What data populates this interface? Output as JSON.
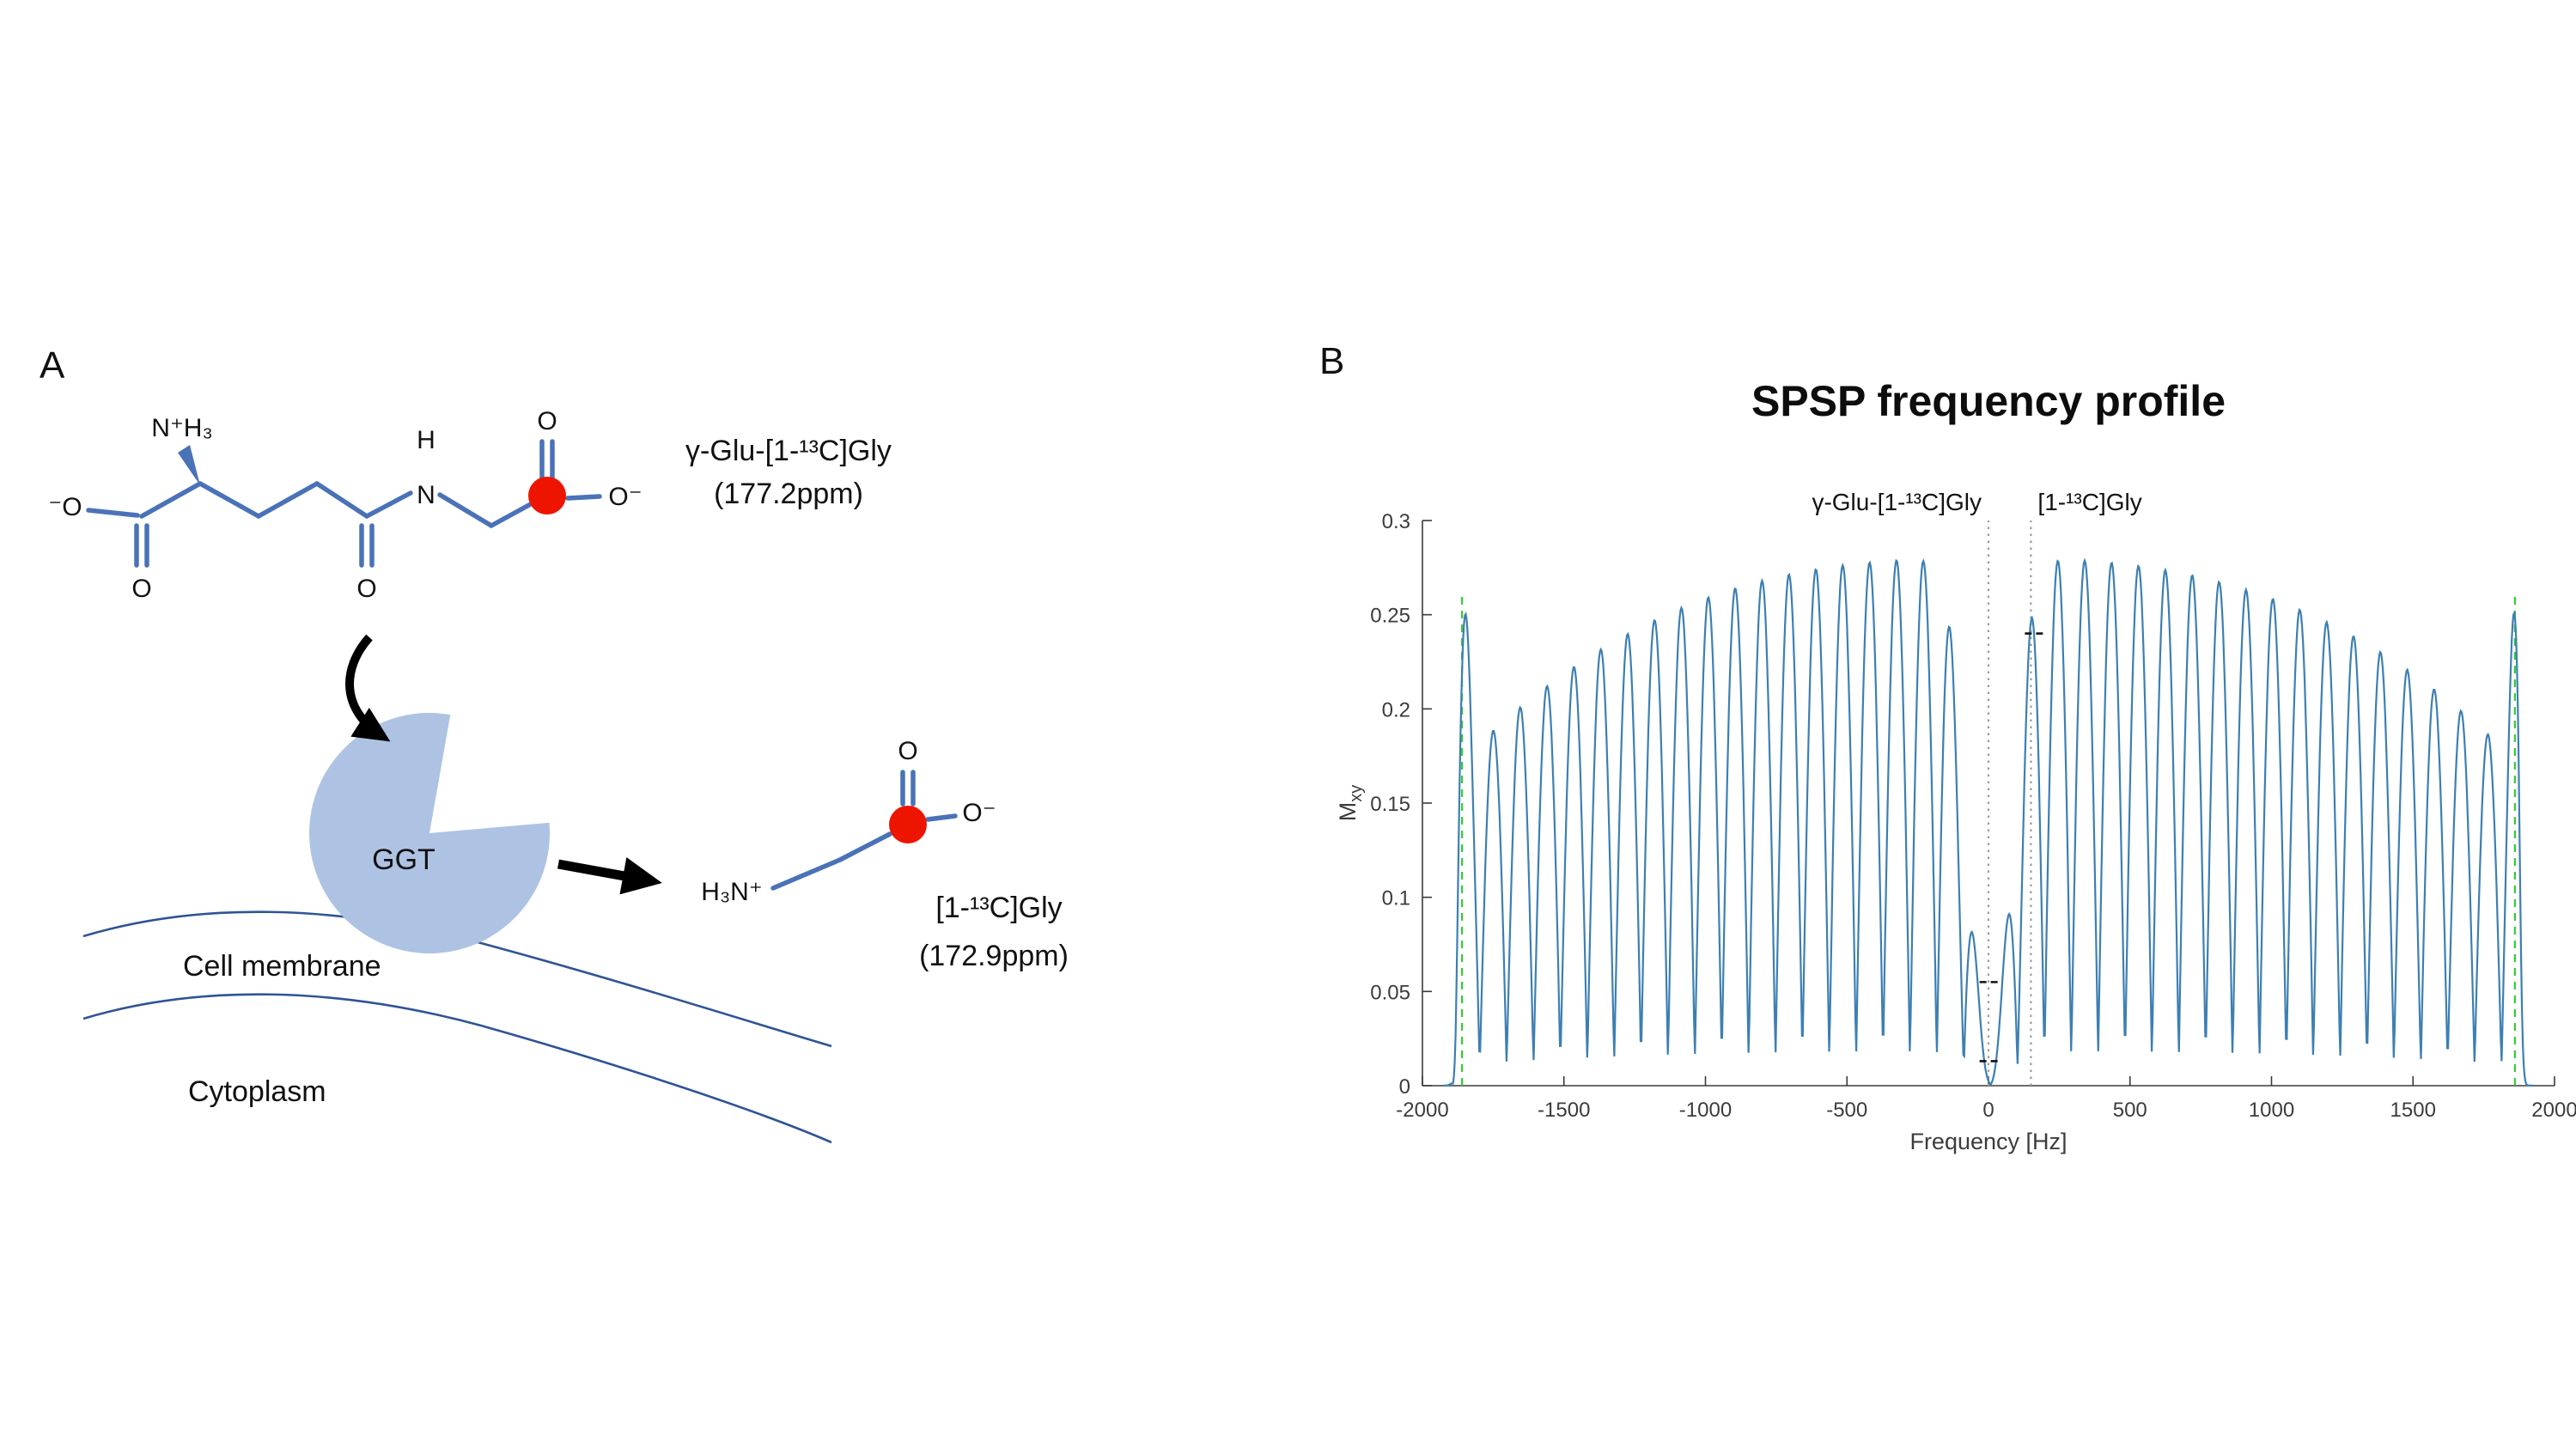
{
  "figure": {
    "background": "#ffffff",
    "panel_a": {
      "letter": "A",
      "substrate": {
        "name": "γ-Glu-[1-¹³C]Gly",
        "shift": "(177.2ppm)",
        "atoms": {
          "amine": "N⁺H₃",
          "carboxylate_left": "⁻O",
          "keto_o_left": "O",
          "amide_o": "O",
          "amide_h": "H",
          "amide_n": "N",
          "carboxyl_o_top": "O",
          "carboxylate_right": "O⁻"
        }
      },
      "product": {
        "name": "[1-¹³C]Gly",
        "shift": "(172.9ppm)",
        "atoms": {
          "amine": "H₃N⁺",
          "carboxyl_o_top": "O",
          "carboxylate_right": "O⁻"
        }
      },
      "enzyme_label": "GGT",
      "membrane_label": "Cell membrane",
      "cytoplasm_label": "Cytoplasm",
      "colors": {
        "bond": "#4a72b8",
        "c13_carbon": "#ee1500",
        "enzyme": "#aec3e3",
        "membrane": "#2f5496",
        "arrow": "#000000"
      }
    },
    "panel_b": {
      "letter": "B"
    }
  },
  "chart_data": {
    "type": "line",
    "title": "SPSP frequency profile",
    "xlabel": "Frequency [Hz]",
    "ylabel": "M",
    "ylabel_sub": "xy",
    "xlim": [
      -2000,
      2000
    ],
    "ylim": [
      0,
      0.3
    ],
    "xticks": [
      "-2000",
      "-1500",
      "-1000",
      "-500",
      "0",
      "500",
      "1000",
      "1500",
      "2000"
    ],
    "yticks": [
      "0",
      "0.05",
      "0.1",
      "0.15",
      "0.2",
      "0.25",
      "0.3"
    ],
    "grid": false,
    "line_color": "#3d7fb2",
    "axis_color": "#3a3a3a",
    "series": [
      {
        "name": "SPSP excitation profile",
        "model": "multiband_lobes",
        "lobe_period_hz": 95,
        "lobe_peak_alignment_hz": 150,
        "lobe_floor_fraction": 0.05,
        "envelope_peak": 0.28,
        "envelope_edge": 0.18,
        "envelope_rolloff_exponent": 2.6,
        "band_edge_hz": 1810,
        "edge_spike_amplitude": 0.075,
        "edge_spike_center_hz": 1855,
        "edge_spike_width_hz": 35,
        "cutoff_hz": 1880,
        "cutoff_softness_hz": 5,
        "notch_center_hz": 5,
        "notch_width_hz": 100,
        "notch_depth": 0.97
      }
    ],
    "reference_lines": [
      {
        "type": "vertical",
        "x": -1860,
        "y_max": 0.26,
        "style": "dashed",
        "color": "#33cc33"
      },
      {
        "type": "vertical",
        "x": 1860,
        "y_max": 0.26,
        "style": "dashed",
        "color": "#33cc33"
      },
      {
        "type": "vertical",
        "x": 0,
        "y_max": 0.3,
        "style": "dotted",
        "color": "#9a9a9a"
      },
      {
        "type": "vertical",
        "x": 150,
        "y_max": 0.3,
        "style": "dotted",
        "color": "#9a9a9a"
      }
    ],
    "markers": [
      {
        "x": 8,
        "y": 0.055
      },
      {
        "x": 8,
        "y": 0.013
      },
      {
        "x": 168,
        "y": 0.24
      }
    ],
    "annotations": [
      {
        "text": "γ-Glu-[1-¹³C]Gly",
        "x": 0,
        "anchor": "end"
      },
      {
        "text": "[1-¹³C]Gly",
        "x": 150,
        "anchor": "start"
      }
    ]
  }
}
